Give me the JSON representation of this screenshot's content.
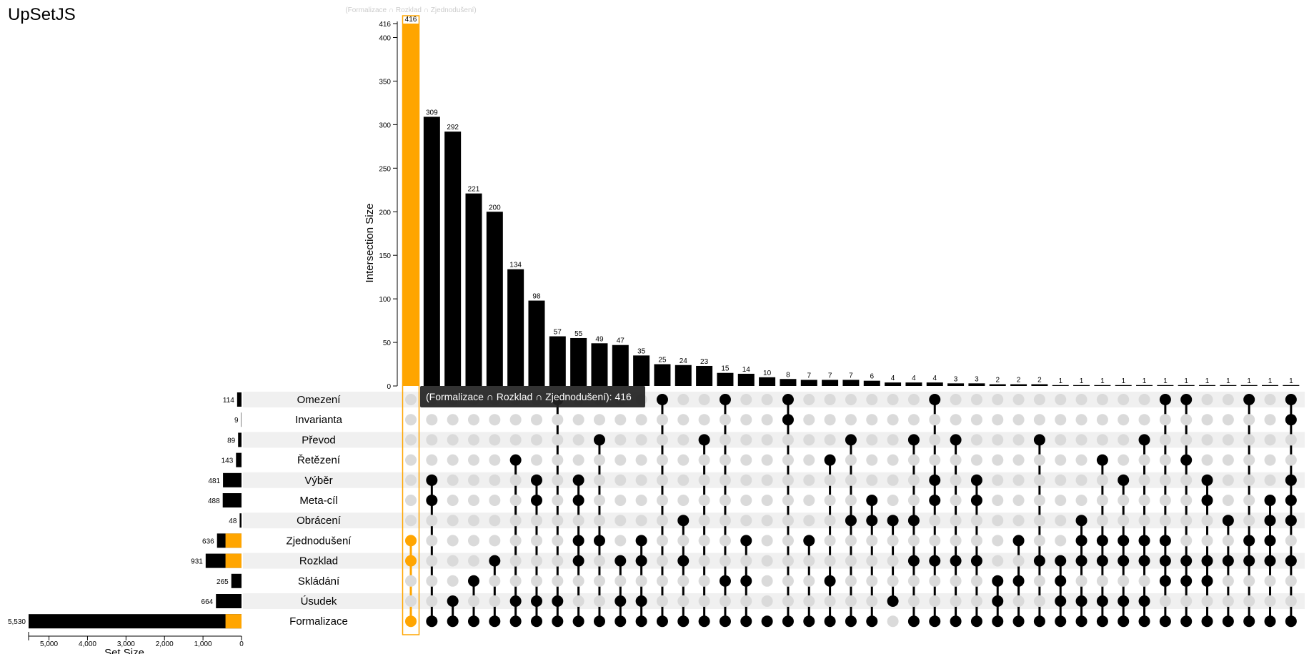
{
  "app": {
    "title": "UpSetJS"
  },
  "colors": {
    "bar": "#000000",
    "selection": "#ffa500",
    "dot_off": "#dadada",
    "row_stripe": "#f0f0f0",
    "tooltip_bg": "#222222"
  },
  "chart_data": {
    "type": "upset",
    "hover_title": "(Formalizace ∩ Rozklad ∩ Zjednodušení)",
    "tooltip": "(Formalizace ∩ Rozklad ∩ Zjednodušení): 416",
    "intersection_axis": {
      "label": "Intersection Size",
      "ticks": [
        0,
        50,
        100,
        150,
        200,
        250,
        300,
        350,
        400,
        416
      ],
      "max": 416
    },
    "set_axis": {
      "label": "Set Size",
      "ticks": [
        0,
        1000,
        2000,
        3000,
        4000,
        5000
      ],
      "tick_labels": [
        "0",
        "1,000",
        "2,000",
        "3,000",
        "4,000",
        "5,000"
      ],
      "max": 5530
    },
    "sets": [
      {
        "name": "Omezení",
        "size": 114,
        "size_label": "114",
        "selected": 0
      },
      {
        "name": "Invarianta",
        "size": 9,
        "size_label": "9",
        "selected": 0
      },
      {
        "name": "Převod",
        "size": 89,
        "size_label": "89",
        "selected": 0
      },
      {
        "name": "Řetězení",
        "size": 143,
        "size_label": "143",
        "selected": 0
      },
      {
        "name": "Výběr",
        "size": 481,
        "size_label": "481",
        "selected": 0
      },
      {
        "name": "Meta-cíl",
        "size": 488,
        "size_label": "488",
        "selected": 0
      },
      {
        "name": "Obrácení",
        "size": 48,
        "size_label": "48",
        "selected": 0
      },
      {
        "name": "Zjednodušení",
        "size": 636,
        "size_label": "636",
        "selected": 416
      },
      {
        "name": "Rozklad",
        "size": 931,
        "size_label": "931",
        "selected": 416
      },
      {
        "name": "Skládání",
        "size": 265,
        "size_label": "265",
        "selected": 0
      },
      {
        "name": "Úsudek",
        "size": 664,
        "size_label": "664",
        "selected": 0
      },
      {
        "name": "Formalizace",
        "size": 5530,
        "size_label": "5,530",
        "selected": 416
      }
    ],
    "intersections": [
      {
        "size": 416,
        "label": "416",
        "sets": [
          7,
          8,
          11
        ],
        "selected": true
      },
      {
        "size": 309,
        "label": "309",
        "sets": [
          4,
          5,
          11
        ]
      },
      {
        "size": 292,
        "label": "292",
        "sets": [
          10,
          11
        ]
      },
      {
        "size": 221,
        "label": "221",
        "sets": [
          9,
          11
        ]
      },
      {
        "size": 200,
        "label": "200",
        "sets": [
          8,
          11
        ]
      },
      {
        "size": 134,
        "label": "134",
        "sets": [
          3,
          10,
          11
        ]
      },
      {
        "size": 98,
        "label": "98",
        "sets": [
          4,
          5,
          10,
          11
        ]
      },
      {
        "size": 57,
        "label": "57",
        "sets": [
          0,
          10,
          11
        ]
      },
      {
        "size": 55,
        "label": "55",
        "sets": [
          4,
          5,
          7,
          8,
          11
        ]
      },
      {
        "size": 49,
        "label": "49",
        "sets": [
          2,
          7,
          11
        ]
      },
      {
        "size": 47,
        "label": "47",
        "sets": [
          8,
          10,
          11
        ]
      },
      {
        "size": 35,
        "label": "35",
        "sets": [
          7,
          8,
          10,
          11
        ]
      },
      {
        "size": 25,
        "label": "25",
        "sets": [
          0,
          11
        ]
      },
      {
        "size": 24,
        "label": "24",
        "sets": [
          6,
          8,
          11
        ]
      },
      {
        "size": 23,
        "label": "23",
        "sets": [
          2,
          11
        ]
      },
      {
        "size": 15,
        "label": "15",
        "sets": [
          0,
          9,
          11
        ]
      },
      {
        "size": 14,
        "label": "14",
        "sets": [
          7,
          9,
          11
        ]
      },
      {
        "size": 10,
        "label": "10",
        "sets": [
          11
        ]
      },
      {
        "size": 8,
        "label": "8",
        "sets": [
          0,
          1,
          11
        ]
      },
      {
        "size": 7,
        "label": "7",
        "sets": [
          7,
          11
        ]
      },
      {
        "size": 7,
        "label": "7",
        "sets": [
          3,
          9,
          11
        ]
      },
      {
        "size": 7,
        "label": "7",
        "sets": [
          2,
          6,
          11
        ]
      },
      {
        "size": 6,
        "label": "6",
        "sets": [
          5,
          6,
          11
        ]
      },
      {
        "size": 4,
        "label": "4",
        "sets": [
          6,
          10
        ]
      },
      {
        "size": 4,
        "label": "4",
        "sets": [
          2,
          6,
          8,
          11
        ]
      },
      {
        "size": 4,
        "label": "4",
        "sets": [
          0,
          4,
          5,
          8,
          11
        ]
      },
      {
        "size": 3,
        "label": "3",
        "sets": [
          2,
          8,
          11
        ]
      },
      {
        "size": 3,
        "label": "3",
        "sets": [
          4,
          5,
          8,
          11
        ]
      },
      {
        "size": 2,
        "label": "2",
        "sets": [
          9,
          10,
          11
        ]
      },
      {
        "size": 2,
        "label": "2",
        "sets": [
          7,
          9,
          11
        ]
      },
      {
        "size": 2,
        "label": "2",
        "sets": [
          2,
          8,
          11
        ]
      },
      {
        "size": 1,
        "label": "1",
        "sets": [
          8,
          9,
          10,
          11
        ]
      },
      {
        "size": 1,
        "label": "1",
        "sets": [
          6,
          7,
          8,
          10,
          11
        ]
      },
      {
        "size": 1,
        "label": "1",
        "sets": [
          3,
          7,
          8,
          10,
          11
        ]
      },
      {
        "size": 1,
        "label": "1",
        "sets": [
          4,
          7,
          8,
          10,
          11
        ]
      },
      {
        "size": 1,
        "label": "1",
        "sets": [
          2,
          7,
          8,
          10,
          11
        ]
      },
      {
        "size": 1,
        "label": "1",
        "sets": [
          0,
          7,
          8,
          9,
          11
        ]
      },
      {
        "size": 1,
        "label": "1",
        "sets": [
          0,
          3,
          8,
          9,
          11
        ]
      },
      {
        "size": 1,
        "label": "1",
        "sets": [
          4,
          5,
          8,
          9,
          11
        ]
      },
      {
        "size": 1,
        "label": "1",
        "sets": [
          6,
          8,
          11
        ]
      },
      {
        "size": 1,
        "label": "1",
        "sets": [
          0,
          7,
          8,
          11
        ]
      },
      {
        "size": 1,
        "label": "1",
        "sets": [
          5,
          6,
          7,
          8,
          11
        ]
      },
      {
        "size": 1,
        "label": "1",
        "sets": [
          0,
          1,
          4,
          5,
          6,
          8,
          11
        ]
      }
    ]
  }
}
